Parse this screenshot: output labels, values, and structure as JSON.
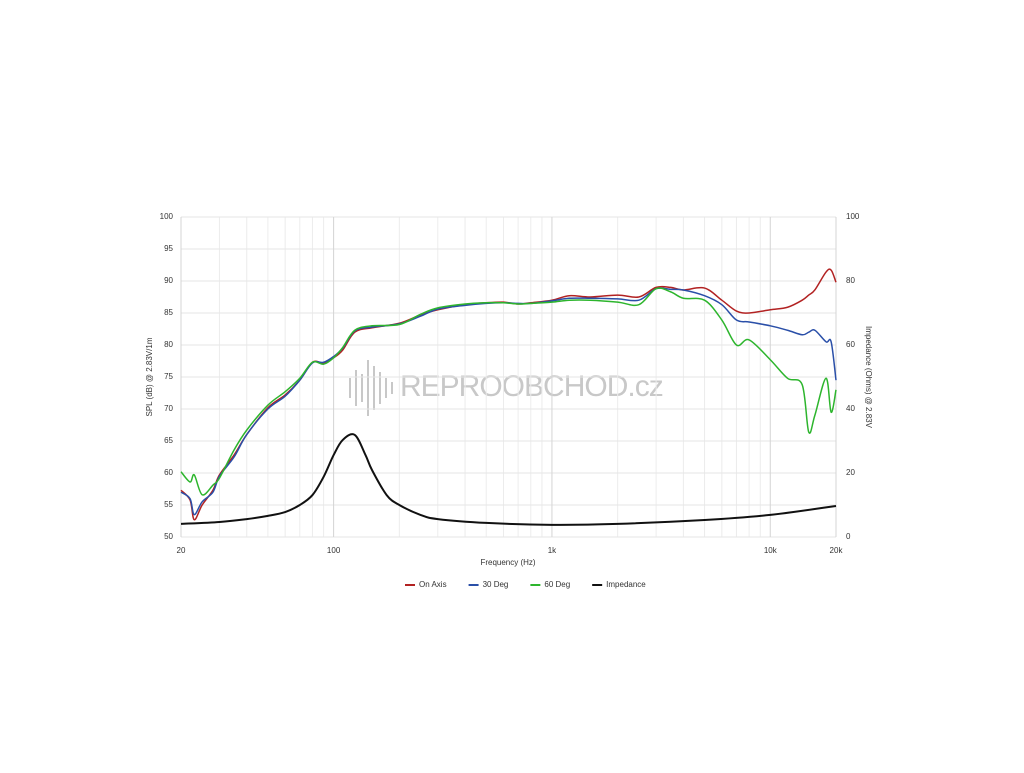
{
  "chart_data": {
    "type": "line",
    "xlabel": "Frequency (Hz)",
    "ylabel": "SPL (dB) @ 2.83V/1m",
    "y2label": "Impedance (Ohms) @ 2.83V",
    "watermark": "REPROOBCHOD.cz",
    "log_x": true,
    "grid": true,
    "legend": "bottom",
    "xlim": [
      20,
      20000
    ],
    "xticks": [
      20,
      100,
      {
        "value": 1000,
        "label": "1k"
      },
      {
        "value": 10000,
        "label": "10k"
      },
      {
        "value": 20000,
        "label": "20k"
      }
    ],
    "x_minor_gridlines": [
      30,
      40,
      50,
      60,
      70,
      80,
      90,
      200,
      300,
      400,
      500,
      600,
      700,
      800,
      900,
      2000,
      3000,
      4000,
      5000,
      6000,
      7000,
      8000,
      9000
    ],
    "ylim": [
      50,
      100
    ],
    "yticks": [
      50,
      55,
      60,
      65,
      70,
      75,
      80,
      85,
      90,
      95,
      100
    ],
    "y2lim": [
      0,
      100
    ],
    "y2ticks": [
      0,
      20,
      40,
      60,
      80,
      100
    ],
    "x": [
      20,
      22,
      23,
      25,
      28,
      30,
      35,
      40,
      50,
      60,
      70,
      80,
      90,
      100,
      110,
      125,
      150,
      200,
      250,
      300,
      400,
      500,
      600,
      700,
      800,
      1000,
      1200,
      1500,
      2000,
      2500,
      3000,
      3500,
      4000,
      5000,
      6000,
      7000,
      8000,
      10000,
      12000,
      14000,
      15000,
      16000,
      18000,
      19000,
      20000
    ],
    "series": [
      {
        "name": "On Axis",
        "color": "#b22222",
        "values": [
          57.3,
          55.8,
          52.7,
          55,
          57.3,
          59.7,
          62.8,
          66,
          70.2,
          72.2,
          74.5,
          77.3,
          77.2,
          78,
          79.2,
          82,
          82.7,
          83.4,
          84.7,
          85.5,
          86.3,
          86.6,
          86.7,
          86.4,
          86.6,
          87,
          87.7,
          87.5,
          87.8,
          87.5,
          89,
          89,
          88.6,
          88.9,
          87,
          85.3,
          85,
          85.5,
          85.9,
          87,
          87.8,
          88.6,
          91.4,
          91.7,
          89.8
        ]
      },
      {
        "name": "30 Deg",
        "color": "#2a4fa8",
        "values": [
          57,
          56,
          53.5,
          55.5,
          57,
          59.5,
          62.5,
          66,
          70,
          72,
          74.5,
          77.2,
          77.3,
          78.2,
          79.5,
          82.2,
          82.8,
          83.3,
          84.5,
          85.6,
          86.2,
          86.5,
          86.6,
          86.5,
          86.5,
          86.9,
          87.3,
          87.3,
          87.2,
          87,
          88.8,
          88.7,
          88.6,
          87.7,
          86.3,
          83.9,
          83.6,
          83,
          82.3,
          81.6,
          82,
          82.3,
          80.5,
          80.5,
          74.5
        ]
      },
      {
        "name": "60 Deg",
        "color": "#2db52d",
        "values": [
          60.2,
          58.6,
          59.7,
          56.6,
          58.1,
          59.2,
          63.6,
          66.7,
          70.6,
          72.7,
          74.8,
          77.3,
          77,
          78,
          79.6,
          82.3,
          83,
          83.2,
          84.8,
          85.8,
          86.4,
          86.6,
          86.6,
          86.4,
          86.5,
          86.7,
          87,
          87,
          86.7,
          86.3,
          88.8,
          88.3,
          87.3,
          87,
          83.9,
          80,
          80.8,
          77.7,
          74.8,
          73.8,
          66.4,
          69,
          74.8,
          69.5,
          73
        ]
      },
      {
        "name": "Impedance",
        "color": "#111111",
        "axis": "y2",
        "x": [
          20,
          30,
          40,
          50,
          60,
          70,
          80,
          90,
          100,
          110,
          125,
          140,
          150,
          175,
          200,
          250,
          300,
          500,
          1000,
          2000,
          5000,
          10000,
          20000
        ],
        "values": [
          4.1,
          4.7,
          5.6,
          6.6,
          7.8,
          10,
          13.1,
          18.8,
          25.6,
          30.3,
          31.9,
          25.6,
          20.9,
          13.1,
          10,
          6.9,
          5.6,
          4.4,
          3.8,
          4.1,
          5.3,
          6.9,
          9.7
        ]
      }
    ]
  }
}
